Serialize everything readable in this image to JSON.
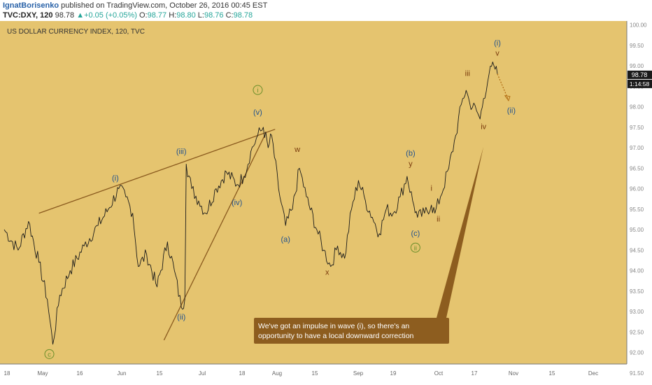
{
  "header": {
    "author": "IgnatBorisenko",
    "published": "published on TradingView.com, October 26, 2016 00:45 EST",
    "symbol": "TVC:DXY, 120",
    "last": "98.78",
    "change_arrow": "▲",
    "change": "+0.05 (+0.05%)",
    "o_label": "O:",
    "o_value": "98.77",
    "h_label": "H:",
    "h_value": "98.80",
    "l_label": "L:",
    "l_value": "98.76",
    "c_label": "C:",
    "c_value": "98.78"
  },
  "colors": {
    "background": "#e5c46f",
    "price_line": "#1a1a1a",
    "trendline": "#8a5a1e",
    "wave_blue": "#22528e",
    "wave_brown": "#7a3a0c",
    "wave_green": "#6b8f2a",
    "callout_bg": "#8d5d1f",
    "price_tag_bg": "#1a1a1a"
  },
  "chart_data": {
    "type": "line",
    "title": "US DOLLAR CURRENCY INDEX, 120, TVC",
    "y_ticks": [
      "100.00",
      "99.50",
      "99.00",
      "98.50",
      "98.00",
      "97.50",
      "97.00",
      "96.50",
      "96.00",
      "95.50",
      "95.00",
      "94.50",
      "94.00",
      "93.50",
      "93.00",
      "92.50",
      "92.00",
      "91.50"
    ],
    "x_ticks": [
      "18",
      "May",
      "16",
      "Jun",
      "15",
      "Jul",
      "18",
      "Aug",
      "15",
      "Sep",
      "19",
      "Oct",
      "17",
      "Nov",
      "15",
      "Dec"
    ],
    "ylim": [
      91.5,
      100.0
    ],
    "price_tag": "98.78",
    "countdown_tag": "1:14:58",
    "anchors": [
      {
        "x": 0.0,
        "y": 95.0
      },
      {
        "x": 2.0,
        "y": 94.5
      },
      {
        "x": 3.5,
        "y": 95.2
      },
      {
        "x": 5.0,
        "y": 94.2
      },
      {
        "x": 6.2,
        "y": 93.3
      },
      {
        "x": 7.0,
        "y": 92.2
      },
      {
        "x": 8.0,
        "y": 93.4
      },
      {
        "x": 9.5,
        "y": 94.0
      },
      {
        "x": 11.5,
        "y": 94.6
      },
      {
        "x": 13.5,
        "y": 95.1
      },
      {
        "x": 15.0,
        "y": 95.5
      },
      {
        "x": 16.5,
        "y": 96.0
      },
      {
        "x": 17.5,
        "y": 95.8
      },
      {
        "x": 18.5,
        "y": 95.4
      },
      {
        "x": 19.3,
        "y": 94.1
      },
      {
        "x": 20.5,
        "y": 94.4
      },
      {
        "x": 22.0,
        "y": 93.6
      },
      {
        "x": 23.5,
        "y": 94.7
      },
      {
        "x": 24.5,
        "y": 94.0
      },
      {
        "x": 25.5,
        "y": 93.1
      },
      {
        "x": 26.0,
        "y": 93.3
      },
      {
        "x": 26.2,
        "y": 96.6
      },
      {
        "x": 27.0,
        "y": 96.0
      },
      {
        "x": 28.0,
        "y": 95.7
      },
      {
        "x": 29.0,
        "y": 95.4
      },
      {
        "x": 30.5,
        "y": 96.0
      },
      {
        "x": 32.0,
        "y": 96.4
      },
      {
        "x": 33.5,
        "y": 96.1
      },
      {
        "x": 34.5,
        "y": 96.3
      },
      {
        "x": 35.5,
        "y": 96.9
      },
      {
        "x": 36.5,
        "y": 97.3
      },
      {
        "x": 37.3,
        "y": 97.5
      },
      {
        "x": 38.0,
        "y": 97.0
      },
      {
        "x": 38.5,
        "y": 97.3
      },
      {
        "x": 39.5,
        "y": 96.0
      },
      {
        "x": 40.5,
        "y": 95.1
      },
      {
        "x": 41.5,
        "y": 95.5
      },
      {
        "x": 42.5,
        "y": 96.5
      },
      {
        "x": 43.5,
        "y": 95.8
      },
      {
        "x": 45.0,
        "y": 95.0
      },
      {
        "x": 46.0,
        "y": 94.5
      },
      {
        "x": 47.0,
        "y": 94.1
      },
      {
        "x": 48.0,
        "y": 94.6
      },
      {
        "x": 49.0,
        "y": 94.3
      },
      {
        "x": 50.0,
        "y": 95.5
      },
      {
        "x": 51.0,
        "y": 96.2
      },
      {
        "x": 52.0,
        "y": 95.7
      },
      {
        "x": 53.0,
        "y": 95.3
      },
      {
        "x": 54.0,
        "y": 94.9
      },
      {
        "x": 55.0,
        "y": 95.5
      },
      {
        "x": 56.0,
        "y": 95.4
      },
      {
        "x": 57.0,
        "y": 95.8
      },
      {
        "x": 58.0,
        "y": 96.3
      },
      {
        "x": 58.8,
        "y": 95.7
      },
      {
        "x": 59.5,
        "y": 95.3
      },
      {
        "x": 60.5,
        "y": 95.4
      },
      {
        "x": 61.5,
        "y": 95.6
      },
      {
        "x": 62.0,
        "y": 95.4
      },
      {
        "x": 62.8,
        "y": 95.8
      },
      {
        "x": 64.0,
        "y": 96.5
      },
      {
        "x": 65.0,
        "y": 97.3
      },
      {
        "x": 66.0,
        "y": 98.2
      },
      {
        "x": 66.5,
        "y": 98.4
      },
      {
        "x": 67.0,
        "y": 98.1
      },
      {
        "x": 68.0,
        "y": 97.9
      },
      {
        "x": 68.5,
        "y": 97.7
      },
      {
        "x": 69.0,
        "y": 98.2
      },
      {
        "x": 69.8,
        "y": 98.8
      },
      {
        "x": 70.5,
        "y": 99.0
      },
      {
        "x": 71.0,
        "y": 98.8
      }
    ],
    "trendlines": [
      {
        "from": [
          5.0,
          95.4
        ],
        "to": [
          39.0,
          97.45
        ]
      },
      {
        "from": [
          23.0,
          92.3
        ],
        "to": [
          37.5,
          97.3
        ]
      }
    ],
    "projection": {
      "from": [
        71.0,
        98.8
      ],
      "to": [
        72.5,
        98.2
      ]
    },
    "wave_labels": [
      {
        "text": "c",
        "x": 6.5,
        "y": 91.9,
        "color": "green",
        "circled": true
      },
      {
        "text": "(i)",
        "x": 16.0,
        "y": 96.2,
        "color": "blue"
      },
      {
        "text": "(ii)",
        "x": 25.5,
        "y": 92.8,
        "color": "blue"
      },
      {
        "text": "(iii)",
        "x": 25.5,
        "y": 96.85,
        "color": "blue"
      },
      {
        "text": "(iv)",
        "x": 33.5,
        "y": 95.6,
        "color": "blue"
      },
      {
        "text": "(v)",
        "x": 36.5,
        "y": 97.8,
        "color": "blue"
      },
      {
        "text": "i",
        "x": 36.5,
        "y": 98.35,
        "color": "green",
        "circled": true
      },
      {
        "text": "w",
        "x": 42.2,
        "y": 96.9,
        "color": "brown"
      },
      {
        "text": "(a)",
        "x": 40.5,
        "y": 94.7,
        "color": "blue"
      },
      {
        "text": "x",
        "x": 46.5,
        "y": 93.9,
        "color": "brown"
      },
      {
        "text": "(b)",
        "x": 58.5,
        "y": 96.8,
        "color": "blue"
      },
      {
        "text": "y",
        "x": 58.5,
        "y": 96.55,
        "color": "brown"
      },
      {
        "text": "(c)",
        "x": 59.2,
        "y": 94.85,
        "color": "blue"
      },
      {
        "text": "ii",
        "x": 59.2,
        "y": 94.5,
        "color": "green",
        "circled": true
      },
      {
        "text": "i",
        "x": 61.5,
        "y": 95.95,
        "color": "brown"
      },
      {
        "text": "ii",
        "x": 62.5,
        "y": 95.2,
        "color": "brown"
      },
      {
        "text": "iii",
        "x": 66.7,
        "y": 98.75,
        "color": "brown"
      },
      {
        "text": "iv",
        "x": 69.0,
        "y": 97.45,
        "color": "brown"
      },
      {
        "text": "(i)",
        "x": 71.0,
        "y": 99.5,
        "color": "blue"
      },
      {
        "text": "v",
        "x": 71.0,
        "y": 99.25,
        "color": "brown"
      },
      {
        "text": "(ii)",
        "x": 73.0,
        "y": 97.85,
        "color": "blue"
      }
    ],
    "annotation": {
      "text_line1": "We've got an impulse in wave (i), so there's an",
      "text_line2": "opportunity to have a local downward correction"
    }
  }
}
